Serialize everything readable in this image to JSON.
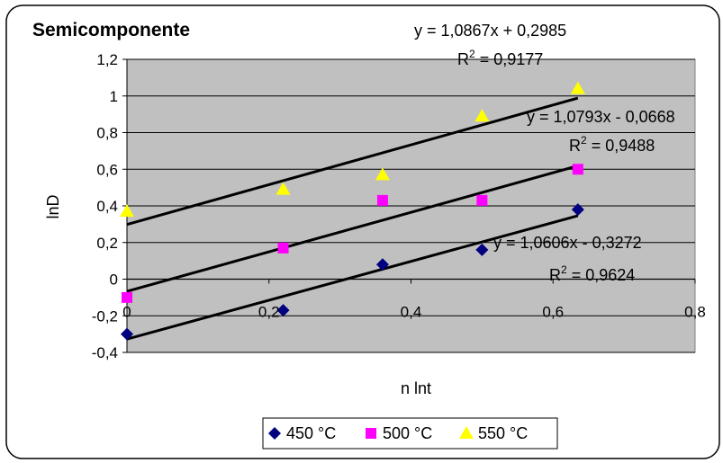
{
  "chart_data": {
    "type": "scatter",
    "title": "Semicomponente",
    "xlabel": "n lnt",
    "ylabel": "lnD",
    "xlim": [
      0,
      0.8
    ],
    "ylim": [
      -0.4,
      1.2
    ],
    "x_ticks": [
      "0",
      "0,2",
      "0,4",
      "0,6",
      "0,8"
    ],
    "y_ticks": [
      "-0,4",
      "-0,2",
      "0",
      "0,2",
      "0,4",
      "0,6",
      "0,8",
      "1",
      "1,2"
    ],
    "x_tick_values": [
      0,
      0.2,
      0.4,
      0.6,
      0.8
    ],
    "y_tick_values": [
      -0.4,
      -0.2,
      0,
      0.2,
      0.4,
      0.6,
      0.8,
      1,
      1.2
    ],
    "grid": "horizontal",
    "legend_position": "bottom",
    "plot_background": "#c0c0c0",
    "series": [
      {
        "name": "450 °C",
        "color": "#000080",
        "marker": "diamond",
        "x": [
          0,
          0.22,
          0.36,
          0.5,
          0.635
        ],
        "y": [
          -0.3,
          -0.17,
          0.08,
          0.16,
          0.38
        ],
        "trendline": {
          "slope": 1.0606,
          "intercept": -0.3272,
          "x_range": [
            0,
            0.635
          ],
          "equation": "y = 1,0606x - 0,3272",
          "r2_label": "R",
          "r2_value": " = 0,9624"
        }
      },
      {
        "name": "500 °C",
        "color": "#ff00ff",
        "marker": "square",
        "x": [
          0,
          0.22,
          0.36,
          0.5,
          0.635
        ],
        "y": [
          -0.1,
          0.17,
          0.43,
          0.43,
          0.6
        ],
        "trendline": {
          "slope": 1.0793,
          "intercept": -0.0668,
          "x_range": [
            0,
            0.635
          ],
          "equation": "y = 1,0793x - 0,0668",
          "r2_label": "R",
          "r2_value": " = 0,9488"
        }
      },
      {
        "name": "550 °C",
        "color": "#ffff00",
        "marker": "triangle",
        "x": [
          0,
          0.22,
          0.36,
          0.5,
          0.635
        ],
        "y": [
          0.37,
          0.49,
          0.57,
          0.89,
          1.04
        ],
        "trendline": {
          "slope": 1.0867,
          "intercept": 0.2985,
          "x_range": [
            0,
            0.635
          ],
          "equation": "y = 1,0867x + 0,2985",
          "r2_label": "R",
          "r2_value": " = 0,9177"
        }
      }
    ]
  }
}
